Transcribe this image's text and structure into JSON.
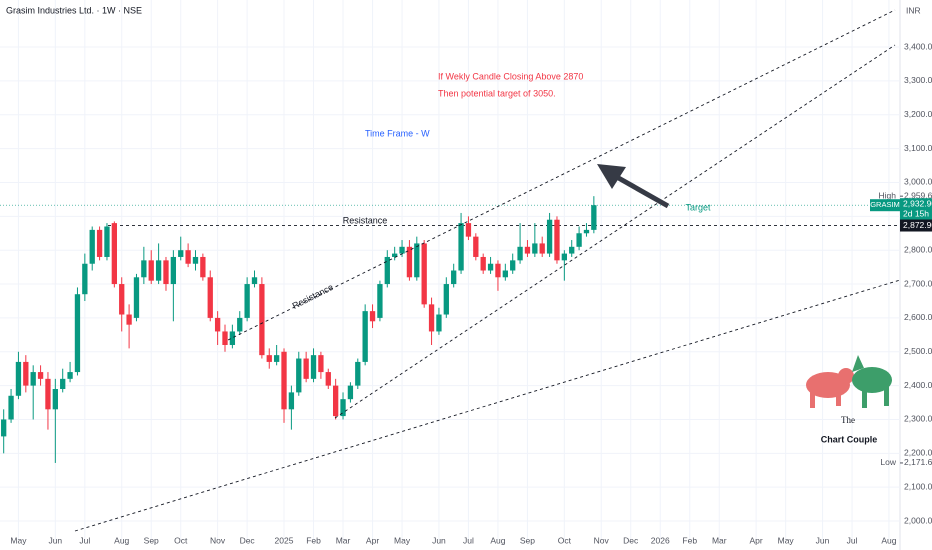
{
  "chart_data": {
    "type": "candlestick",
    "title": "Grasim Industries Ltd. · 1W · NSE",
    "currency": "INR",
    "up_color": "#089981",
    "down_color": "#f23645",
    "categories": [
      null,
      null,
      "May",
      null,
      null,
      null,
      null,
      "Jun",
      null,
      null,
      null,
      "Jul",
      null,
      null,
      null,
      null,
      "Aug",
      null,
      null,
      null,
      "Sep",
      null,
      null,
      null,
      "Oct",
      null,
      null,
      null,
      null,
      "Nov",
      null,
      null,
      null,
      "Dec",
      null,
      null,
      null,
      null,
      "2025",
      null,
      null,
      null,
      "Feb",
      null,
      null,
      null,
      "Mar",
      null,
      null,
      null,
      "Apr",
      null,
      null,
      null,
      "May",
      null,
      null,
      null,
      null,
      "Jun",
      null,
      null,
      null,
      "Jul",
      null,
      null,
      null,
      "Aug",
      null,
      null,
      null,
      "Sep",
      null,
      null,
      null,
      null,
      "Oct",
      null,
      null,
      null,
      null,
      "Nov",
      null,
      null,
      null,
      "Dec",
      null,
      null,
      null,
      "2026",
      null,
      null,
      null,
      "Feb",
      null,
      null,
      null,
      "Mar",
      null,
      null,
      null,
      null,
      "Apr",
      null,
      null,
      null,
      "May",
      null,
      null,
      null,
      null,
      "Jun",
      null,
      null,
      null,
      "Jul",
      null,
      null,
      null,
      null,
      "Aug",
      null
    ],
    "open": [
      2250,
      2300,
      2370,
      2470,
      2400,
      2440,
      2420,
      2330,
      2390,
      2420,
      2440,
      2670,
      2760,
      2860,
      2780,
      2880,
      2700,
      2610,
      2600,
      2720,
      2770,
      2710,
      2770,
      2700,
      2780,
      2800,
      2760,
      2780,
      2720,
      2600,
      2560,
      2520,
      2560,
      2600,
      2700,
      2700,
      2490,
      2470,
      2500,
      2330,
      2380,
      2480,
      2420,
      2490,
      2440,
      2400,
      2310,
      2360,
      2400,
      2470,
      2620,
      2600,
      2700,
      2780,
      2790,
      2810,
      2720,
      2820,
      2640,
      2560,
      2610,
      2700,
      2740,
      2880,
      2840,
      2780,
      2740,
      2760,
      2720,
      2740,
      2770,
      2810,
      2790,
      2820,
      2790,
      2890,
      2770,
      2790,
      2810,
      2850,
      2860,
      null,
      null,
      null,
      null,
      null,
      null,
      null,
      null,
      null,
      null,
      null,
      null,
      null,
      null,
      null,
      null,
      null,
      null,
      null,
      null,
      null,
      null,
      null,
      null,
      null,
      null,
      null,
      null,
      null,
      null,
      null,
      null,
      null,
      null,
      null,
      null,
      null,
      null,
      null,
      null,
      null
    ],
    "high": [
      2330,
      2390,
      2500,
      2490,
      2460,
      2460,
      2440,
      2420,
      2450,
      2470,
      2690,
      2790,
      2870,
      2870,
      2880,
      2885,
      2720,
      2640,
      2730,
      2810,
      2800,
      2820,
      2780,
      2800,
      2840,
      2820,
      2800,
      2790,
      2740,
      2620,
      2580,
      2580,
      2620,
      2720,
      2740,
      2720,
      2510,
      2520,
      2510,
      2400,
      2500,
      2500,
      2510,
      2500,
      2450,
      2420,
      2380,
      2410,
      2480,
      2640,
      2640,
      2710,
      2800,
      2810,
      2830,
      2830,
      2840,
      2830,
      2660,
      2630,
      2720,
      2760,
      2910,
      2900,
      2850,
      2790,
      2780,
      2770,
      2760,
      2790,
      2880,
      2830,
      2880,
      2840,
      2910,
      2900,
      2800,
      2830,
      2870,
      2880,
      2959.6,
      null,
      null,
      null,
      null,
      null,
      null,
      null,
      null,
      null,
      null,
      null,
      null,
      null,
      null,
      null,
      null,
      null,
      null,
      null,
      null,
      null,
      null,
      null,
      null,
      null,
      null,
      null,
      null,
      null,
      null,
      null,
      null,
      null,
      null,
      null,
      null,
      null,
      null,
      null,
      null,
      null
    ],
    "low": [
      2200,
      2290,
      2360,
      2380,
      2300,
      2400,
      2270,
      2171.6,
      2380,
      2410,
      2430,
      2650,
      2740,
      2770,
      2770,
      2690,
      2560,
      2510,
      2590,
      2700,
      2700,
      2700,
      2680,
      2590,
      2770,
      2750,
      2740,
      2710,
      2590,
      2520,
      2500,
      2510,
      2550,
      2590,
      2690,
      2480,
      2450,
      2460,
      2290,
      2270,
      2370,
      2410,
      2410,
      2420,
      2390,
      2300,
      2300,
      2350,
      2390,
      2460,
      2570,
      2590,
      2690,
      2770,
      2780,
      2710,
      2710,
      2630,
      2520,
      2550,
      2600,
      2690,
      2730,
      2830,
      2770,
      2730,
      2730,
      2680,
      2710,
      2730,
      2760,
      2780,
      2780,
      2780,
      2780,
      2760,
      2710,
      2780,
      2800,
      2840,
      2850,
      null,
      null,
      null,
      null,
      null,
      null,
      null,
      null,
      null,
      null,
      null,
      null,
      null,
      null,
      null,
      null,
      null,
      null,
      null,
      null,
      null,
      null,
      null,
      null,
      null,
      null,
      null,
      null,
      null,
      null,
      null,
      null,
      null,
      null,
      null,
      null,
      null,
      null,
      null,
      null,
      null
    ],
    "close": [
      2300,
      2370,
      2470,
      2400,
      2440,
      2420,
      2330,
      2390,
      2420,
      2440,
      2670,
      2760,
      2860,
      2780,
      2870,
      2700,
      2610,
      2580,
      2720,
      2770,
      2710,
      2770,
      2700,
      2780,
      2800,
      2760,
      2780,
      2720,
      2600,
      2560,
      2520,
      2560,
      2600,
      2700,
      2720,
      2490,
      2470,
      2490,
      2330,
      2380,
      2480,
      2420,
      2490,
      2440,
      2400,
      2310,
      2360,
      2400,
      2470,
      2620,
      2590,
      2700,
      2780,
      2790,
      2810,
      2720,
      2820,
      2640,
      2560,
      2610,
      2700,
      2740,
      2880,
      2840,
      2780,
      2740,
      2760,
      2720,
      2740,
      2770,
      2810,
      2790,
      2820,
      2790,
      2890,
      2770,
      2790,
      2810,
      2850,
      2860,
      2932.9,
      null,
      null,
      null,
      null,
      null,
      null,
      null,
      null,
      null,
      null,
      null,
      null,
      null,
      null,
      null,
      null,
      null,
      null,
      null,
      null,
      null,
      null,
      null,
      null,
      null,
      null,
      null,
      null,
      null,
      null,
      null,
      null,
      null,
      null,
      null,
      null,
      null,
      null,
      null,
      null,
      null
    ],
    "ylim": [
      1944,
      3539
    ],
    "yticks": [
      {
        "value": 2000,
        "label": "2,000.00"
      },
      {
        "value": 2100,
        "label": "2,100.00"
      },
      {
        "value": 2200,
        "label": "2,200.00"
      },
      {
        "value": 2300,
        "label": "2,300.00"
      },
      {
        "value": 2400,
        "label": "2,400.00"
      },
      {
        "value": 2500,
        "label": "2,500.00"
      },
      {
        "value": 2600,
        "label": "2,600.00"
      },
      {
        "value": 2700,
        "label": "2,700.00"
      },
      {
        "value": 2800,
        "label": "2,800.00"
      },
      {
        "value": 2900,
        "label": "2,900.00"
      },
      {
        "value": 3000,
        "label": "3,000.00"
      },
      {
        "value": 3100,
        "label": "3,100.00"
      },
      {
        "value": 3200,
        "label": "3,200.00"
      },
      {
        "value": 3300,
        "label": "3,300.00"
      },
      {
        "value": 3400,
        "label": "3,400.00"
      }
    ],
    "high_tag": {
      "name": "High",
      "value": 2959.6,
      "label": "2,959.60"
    },
    "last_tag": {
      "name": "GRASIM",
      "value": 2932.9,
      "label": "2,932.90",
      "countdown": "2d 15h"
    },
    "level_tag": {
      "value": 2872.9,
      "label": "2,872.90"
    },
    "low_tag": {
      "name": "Low",
      "value": 2171.6,
      "label": "2,171.60"
    },
    "annotations": {
      "condition": "If Wekly Candle Closing Above 2870",
      "target_note": "Then potential target of 3050.",
      "timeframe": "Time Frame - W",
      "resistance_horizontal": "Resistance",
      "resistance_trend": "Resistance",
      "target": "Target",
      "logo_top": "The",
      "logo_bottom": "Chart Couple"
    }
  }
}
